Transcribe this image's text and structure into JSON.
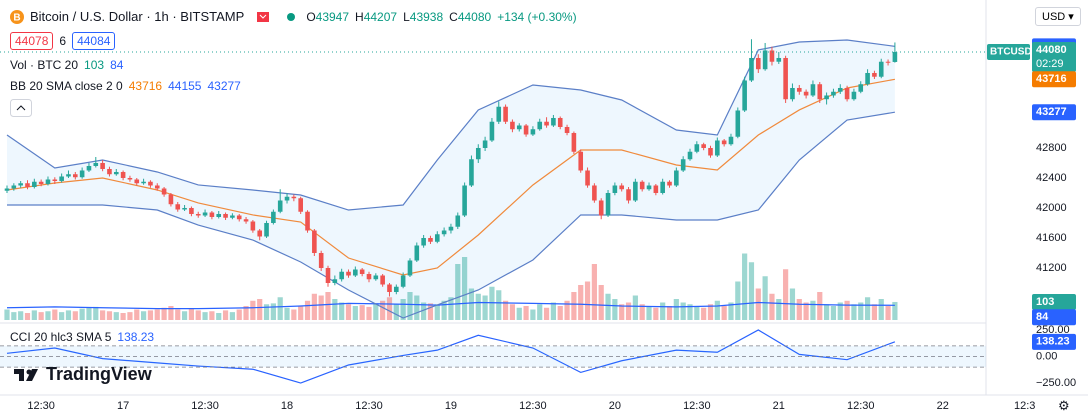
{
  "chart_data": {
    "type": "candlestick",
    "title": "Bitcoin / U.S. Dollar · 1h · BITSTAMP",
    "currency": "USD",
    "symbol": "BTCUSD",
    "countdown": "02:29",
    "logo": "TradingView",
    "ohlc_legend_labels": [
      "O",
      "H",
      "L",
      "C"
    ],
    "change": {
      "value": 134,
      "label": "+134 (+0.30%)"
    },
    "sell": 44078,
    "spread": 6,
    "buy": 44084,
    "volume_label": "Vol · BTC 20",
    "bb_label": "BB 20 SMA close 2 0",
    "cci_label": "CCI 20 hlc3 SMA 5",
    "up_color": "#26a69a",
    "down_color": "#ef5350",
    "ylim": [
      40480,
      44773
    ],
    "yticks": [
      41200,
      41600,
      42000,
      42400,
      42800
    ],
    "vol_ylim": [
      0,
      600
    ],
    "cci_ylim": [
      -363,
      297
    ],
    "cci_ticks": [
      {
        "value": 250,
        "label": "250.00"
      },
      {
        "value": 0,
        "label": "0.00"
      },
      {
        "value": -250,
        "label": "−250.00"
      }
    ],
    "cci_levels": [
      100,
      0,
      -100
    ],
    "xticks": [
      {
        "value": 5,
        "label": "12:30"
      },
      {
        "value": 17,
        "label": "17"
      },
      {
        "value": 29,
        "label": "12:30"
      },
      {
        "value": 41,
        "label": "18"
      },
      {
        "value": 53,
        "label": "12:30"
      },
      {
        "value": 65,
        "label": "19"
      },
      {
        "value": 77,
        "label": "12:30"
      },
      {
        "value": 89,
        "label": "20"
      },
      {
        "value": 101,
        "label": "12:30"
      },
      {
        "value": 113,
        "label": "21"
      },
      {
        "value": 125,
        "label": "12:30"
      },
      {
        "value": 137,
        "label": "22"
      },
      {
        "value": 149,
        "label": "12:3"
      }
    ],
    "ohlc": [
      [
        42230,
        42300,
        42200,
        42260
      ],
      [
        42260,
        42330,
        42230,
        42300
      ],
      [
        42300,
        42360,
        42270,
        42330
      ],
      [
        42330,
        42370,
        42250,
        42280
      ],
      [
        42280,
        42390,
        42260,
        42350
      ],
      [
        42350,
        42380,
        42290,
        42320
      ],
      [
        42320,
        42420,
        42300,
        42380
      ],
      [
        42380,
        42410,
        42320,
        42360
      ],
      [
        42360,
        42460,
        42340,
        42420
      ],
      [
        42420,
        42500,
        42400,
        42450
      ],
      [
        42450,
        42480,
        42380,
        42410
      ],
      [
        42410,
        42540,
        42390,
        42500
      ],
      [
        42500,
        42600,
        42480,
        42560
      ],
      [
        42560,
        42680,
        42540,
        42600
      ],
      [
        42600,
        42640,
        42490,
        42520
      ],
      [
        42520,
        42550,
        42420,
        42450
      ],
      [
        42450,
        42520,
        42430,
        42480
      ],
      [
        42480,
        42500,
        42370,
        42400
      ],
      [
        42400,
        42430,
        42350,
        42380
      ],
      [
        42380,
        42400,
        42300,
        42330
      ],
      [
        42330,
        42390,
        42310,
        42350
      ],
      [
        42350,
        42370,
        42270,
        42300
      ],
      [
        42300,
        42330,
        42230,
        42260
      ],
      [
        42260,
        42280,
        42150,
        42180
      ],
      [
        42180,
        42200,
        42020,
        42050
      ],
      [
        42050,
        42080,
        41950,
        41980
      ],
      [
        41980,
        42040,
        41960,
        42000
      ],
      [
        42000,
        42020,
        41890,
        41920
      ],
      [
        41920,
        41950,
        41870,
        41900
      ],
      [
        41900,
        41980,
        41880,
        41940
      ],
      [
        41940,
        41960,
        41850,
        41880
      ],
      [
        41880,
        41960,
        41860,
        41920
      ],
      [
        41920,
        41940,
        41840,
        41870
      ],
      [
        41870,
        41930,
        41850,
        41900
      ],
      [
        41900,
        41920,
        41820,
        41850
      ],
      [
        41850,
        41880,
        41790,
        41820
      ],
      [
        41820,
        41840,
        41670,
        41700
      ],
      [
        41700,
        41720,
        41570,
        41620
      ],
      [
        41620,
        41830,
        41600,
        41800
      ],
      [
        41800,
        41980,
        41780,
        41950
      ],
      [
        41950,
        42250,
        41930,
        42100
      ],
      [
        42100,
        42200,
        42060,
        42150
      ],
      [
        42150,
        42180,
        42090,
        42130
      ],
      [
        42130,
        42150,
        41920,
        41950
      ],
      [
        41950,
        41970,
        41670,
        41700
      ],
      [
        41700,
        41720,
        41360,
        41400
      ],
      [
        41400,
        41430,
        41160,
        41200
      ],
      [
        41200,
        41230,
        40950,
        41000
      ],
      [
        41000,
        41100,
        40970,
        41050
      ],
      [
        41050,
        41190,
        41020,
        41150
      ],
      [
        41150,
        41180,
        41070,
        41100
      ],
      [
        41100,
        41220,
        41080,
        41180
      ],
      [
        41180,
        41200,
        41090,
        41120
      ],
      [
        41120,
        41150,
        41010,
        41050
      ],
      [
        41050,
        41130,
        41030,
        41100
      ],
      [
        41100,
        41120,
        40950,
        40980
      ],
      [
        40980,
        41000,
        40820,
        40880
      ],
      [
        40880,
        40980,
        40850,
        40950
      ],
      [
        40950,
        41140,
        40930,
        41100
      ],
      [
        41100,
        41330,
        41080,
        41300
      ],
      [
        41300,
        41540,
        41280,
        41500
      ],
      [
        41500,
        41640,
        41470,
        41600
      ],
      [
        41600,
        41630,
        41520,
        41550
      ],
      [
        41550,
        41690,
        41530,
        41650
      ],
      [
        41650,
        41740,
        41620,
        41700
      ],
      [
        41700,
        41790,
        41660,
        41750
      ],
      [
        41750,
        41940,
        41720,
        41900
      ],
      [
        41900,
        42340,
        41880,
        42300
      ],
      [
        42300,
        42700,
        42280,
        42650
      ],
      [
        42650,
        42850,
        42600,
        42800
      ],
      [
        42800,
        42950,
        42760,
        42900
      ],
      [
        42900,
        43200,
        42880,
        43150
      ],
      [
        43150,
        43420,
        43120,
        43350
      ],
      [
        43350,
        43380,
        43120,
        43150
      ],
      [
        43150,
        43180,
        43010,
        43050
      ],
      [
        43050,
        43130,
        43020,
        43100
      ],
      [
        43100,
        43120,
        42950,
        42980
      ],
      [
        42980,
        43090,
        42960,
        43050
      ],
      [
        43050,
        43190,
        43030,
        43150
      ],
      [
        43150,
        43210,
        43070,
        43100
      ],
      [
        43100,
        43240,
        43080,
        43200
      ],
      [
        43200,
        43220,
        43050,
        43080
      ],
      [
        43080,
        43110,
        42970,
        43000
      ],
      [
        43000,
        43020,
        42720,
        42750
      ],
      [
        42750,
        42780,
        42470,
        42500
      ],
      [
        42500,
        42540,
        42270,
        42300
      ],
      [
        42300,
        42330,
        42070,
        42100
      ],
      [
        42100,
        42130,
        41850,
        41900
      ],
      [
        41900,
        42240,
        41880,
        42200
      ],
      [
        42200,
        42340,
        42170,
        42300
      ],
      [
        42300,
        42330,
        42220,
        42250
      ],
      [
        42250,
        42280,
        42060,
        42100
      ],
      [
        42100,
        42390,
        42080,
        42350
      ],
      [
        42350,
        42370,
        42220,
        42250
      ],
      [
        42250,
        42340,
        42230,
        42300
      ],
      [
        42300,
        42320,
        42170,
        42200
      ],
      [
        42200,
        42390,
        42180,
        42350
      ],
      [
        42350,
        42370,
        42270,
        42300
      ],
      [
        42300,
        42540,
        42280,
        42500
      ],
      [
        42500,
        42690,
        42480,
        42650
      ],
      [
        42650,
        42790,
        42630,
        42750
      ],
      [
        42750,
        42890,
        42730,
        42850
      ],
      [
        42850,
        42870,
        42770,
        42800
      ],
      [
        42800,
        42830,
        42670,
        42700
      ],
      [
        42700,
        42940,
        42680,
        42900
      ],
      [
        42900,
        42920,
        42820,
        42850
      ],
      [
        42850,
        42990,
        42830,
        42950
      ],
      [
        42950,
        43340,
        42930,
        43300
      ],
      [
        43300,
        43750,
        43280,
        43700
      ],
      [
        43700,
        44250,
        43680,
        44000
      ],
      [
        44000,
        44050,
        43800,
        43850
      ],
      [
        43850,
        44200,
        43830,
        44100
      ],
      [
        44100,
        44150,
        43900,
        43950
      ],
      [
        43950,
        44080,
        43920,
        44000
      ],
      [
        44000,
        44030,
        43400,
        43450
      ],
      [
        43450,
        43660,
        43420,
        43600
      ],
      [
        43600,
        43640,
        43510,
        43550
      ],
      [
        43550,
        43580,
        43460,
        43500
      ],
      [
        43500,
        43700,
        43480,
        43650
      ],
      [
        43650,
        43680,
        43400,
        43450
      ],
      [
        43450,
        43540,
        43380,
        43500
      ],
      [
        43500,
        43590,
        43470,
        43550
      ],
      [
        43550,
        43650,
        43520,
        43600
      ],
      [
        43600,
        43630,
        43420,
        43450
      ],
      [
        43450,
        43590,
        43430,
        43550
      ],
      [
        43550,
        43690,
        43530,
        43650
      ],
      [
        43650,
        43850,
        43630,
        43800
      ],
      [
        43800,
        43830,
        43720,
        43750
      ],
      [
        43750,
        43990,
        43730,
        43950
      ],
      [
        43950,
        43980,
        43900,
        43947
      ],
      [
        43947,
        44207,
        43938,
        44080
      ]
    ],
    "volumes": [
      60,
      45,
      50,
      40,
      55,
      45,
      50,
      60,
      45,
      55,
      50,
      65,
      70,
      75,
      55,
      50,
      45,
      40,
      45,
      60,
      50,
      55,
      60,
      70,
      80,
      60,
      50,
      65,
      55,
      45,
      50,
      40,
      55,
      45,
      60,
      80,
      110,
      120,
      90,
      95,
      130,
      70,
      60,
      80,
      110,
      150,
      140,
      160,
      120,
      100,
      90,
      80,
      85,
      75,
      95,
      110,
      130,
      90,
      120,
      160,
      140,
      100,
      95,
      90,
      110,
      130,
      320,
      360,
      180,
      150,
      140,
      190,
      170,
      110,
      90,
      70,
      80,
      60,
      90,
      70,
      100,
      80,
      110,
      160,
      200,
      220,
      320,
      200,
      150,
      120,
      90,
      100,
      140,
      90,
      80,
      70,
      100,
      80,
      120,
      100,
      90,
      80,
      70,
      90,
      110,
      80,
      100,
      220,
      380,
      330,
      180,
      250,
      150,
      120,
      290,
      180,
      120,
      100,
      110,
      160,
      90,
      80,
      100,
      110,
      90,
      100,
      130,
      90,
      120,
      80,
      103
    ],
    "line_x": [
      0,
      7,
      14,
      22,
      28,
      36,
      43,
      50,
      58,
      63,
      69,
      77,
      84,
      90,
      98,
      104,
      110,
      116,
      123,
      130
    ],
    "bb_basis": [
      42240,
      42333,
      42400,
      42240,
      42067,
      41907,
      41813,
      41333,
      41107,
      41200,
      41640,
      42307,
      42773,
      42773,
      42573,
      42507,
      42973,
      43307,
      43600,
      43716
    ],
    "bb_upper": [
      42973,
      42533,
      42640,
      42480,
      42307,
      42240,
      42173,
      41973,
      42040,
      42640,
      43307,
      43640,
      43573,
      43440,
      43040,
      42973,
      44107,
      44213,
      44240,
      44155
    ],
    "bb_lower": [
      42040,
      42040,
      42040,
      41973,
      41773,
      41573,
      41280,
      40907,
      40533,
      40707,
      40907,
      41307,
      41907,
      41907,
      41840,
      41840,
      41973,
      42640,
      43173,
      43277
    ],
    "vol_ma": [
      70,
      75,
      70,
      65,
      65,
      70,
      80,
      95,
      90,
      85,
      100,
      95,
      90,
      80,
      75,
      80,
      100,
      90,
      85,
      84
    ],
    "cci": [
      30,
      80,
      -20,
      -60,
      -90,
      -120,
      -250,
      -80,
      10,
      60,
      200,
      80,
      -150,
      -40,
      60,
      40,
      250,
      20,
      -30,
      138.23
    ]
  }
}
